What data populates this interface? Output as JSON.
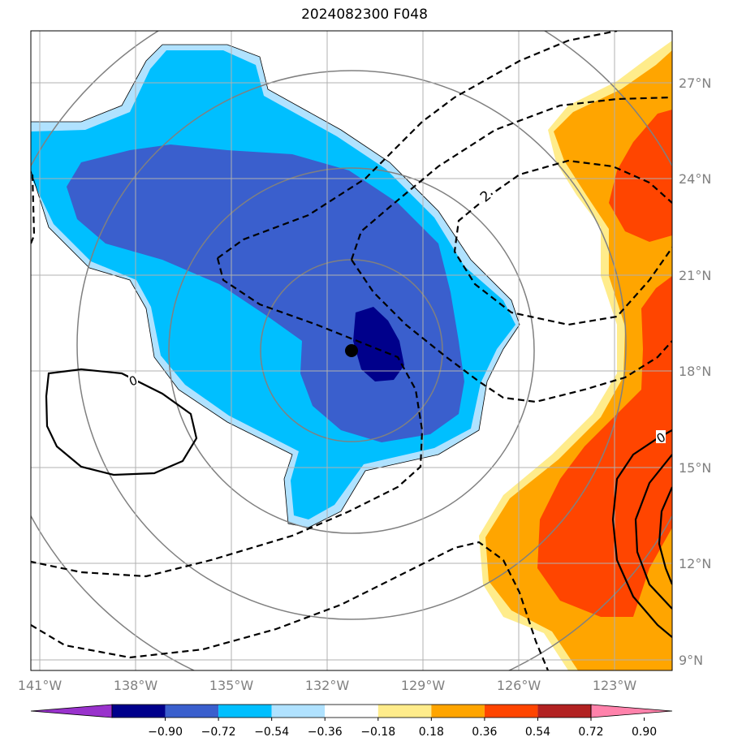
{
  "title": "2024082300 F048",
  "lat_labels": [
    "27°N",
    "24°N",
    "21°N",
    "18°N",
    "15°N",
    "12°N",
    "9°N"
  ],
  "lon_labels": [
    "141°W",
    "138°W",
    "135°W",
    "132°W",
    "129°W",
    "126°W",
    "123°W"
  ],
  "contour_labels": {
    "neg": "2",
    "zero_left": "0",
    "zero_right": "0"
  },
  "colorbar": {
    "ticks": [
      "−0.90",
      "−0.72",
      "−0.54",
      "−0.36",
      "−0.18",
      "0.18",
      "0.36",
      "0.54",
      "0.72",
      "0.90"
    ],
    "colors": [
      "#9932CC",
      "#00008B",
      "#3A5FCD",
      "#00BFFF",
      "#B0E2FF",
      "#FFFFFF",
      "#FFEC8B",
      "#FFA500",
      "#FF4500",
      "#B22222",
      "#FF82AB"
    ]
  },
  "fill_colors": {
    "light_blue": "#B0E2FF",
    "sky_blue": "#00BFFF",
    "royal_blue": "#3A5FCD",
    "navy": "#00008B",
    "pale_yellow": "#FFEC8B",
    "orange": "#FFA500",
    "red_orange": "#FF4500"
  }
}
